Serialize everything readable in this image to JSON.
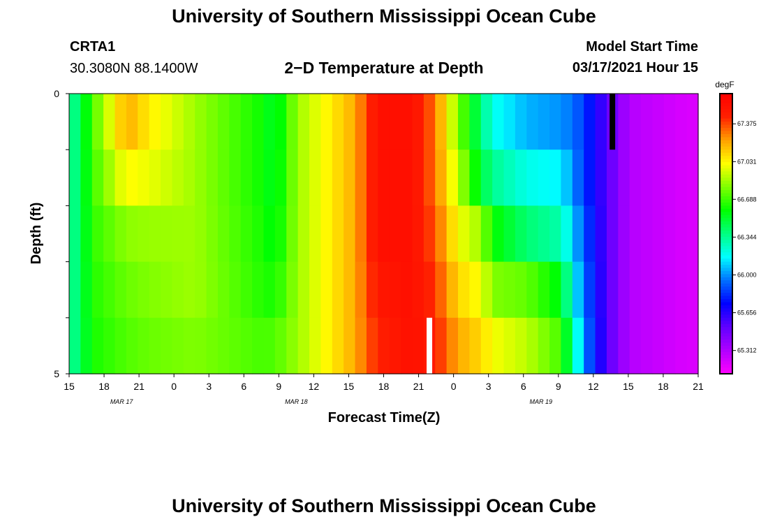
{
  "page": {
    "title": "University of Southern Mississippi Ocean Cube",
    "footer_title": "University of Southern Mississippi Ocean Cube",
    "station": "CRTA1",
    "coords": "30.3080N 88.1400W",
    "model_start_label": "Model Start Time",
    "model_start_value": "03/17/2021 Hour 15"
  },
  "chart_data": {
    "type": "heatmap",
    "title": "2−D Temperature at Depth",
    "xlabel": "Forecast Time(Z)",
    "ylabel": "Depth (ft)",
    "colorbar_unit": "degF",
    "y_ticks": [
      "0",
      "5"
    ],
    "y_range": [
      0,
      5
    ],
    "x_tick_labels": [
      "15",
      "18",
      "21",
      "0",
      "3",
      "6",
      "9",
      "12",
      "15",
      "18",
      "21",
      "0",
      "3",
      "6",
      "9",
      "12",
      "15",
      "18",
      "21"
    ],
    "date_labels": [
      {
        "text": "MAR 17",
        "tick_index": 2
      },
      {
        "text": "MAR 18",
        "tick_index": 7
      },
      {
        "text": "MAR 19",
        "tick_index": 14
      }
    ],
    "colorbar_labels": [
      "67.375",
      "67.031",
      "66.688",
      "66.344",
      "66.000",
      "65.656",
      "65.312"
    ],
    "value_range": [
      65.1,
      67.65
    ],
    "hours": 55,
    "depth_layers": 5,
    "palette": [
      "#ff00ff",
      "#b000ff",
      "#6000ff",
      "#0000ff",
      "#0070ff",
      "#00ffff",
      "#00ff80",
      "#00ff00",
      "#80ff00",
      "#ffff00",
      "#ffa000",
      "#ff2000",
      "#ff0000"
    ],
    "keyframes": [
      [
        0,
        [
          66.3,
          66.3,
          66.3,
          66.3,
          66.3
        ]
      ],
      [
        1,
        [
          66.45,
          66.45,
          66.45,
          66.45,
          66.45
        ]
      ],
      [
        2,
        [
          66.7,
          66.68,
          66.66,
          66.64,
          66.62
        ]
      ],
      [
        5,
        [
          67.2,
          67.02,
          66.82,
          66.76,
          66.72
        ]
      ],
      [
        7,
        [
          67.05,
          66.98,
          66.84,
          66.8,
          66.76
        ]
      ],
      [
        11,
        [
          66.85,
          66.85,
          66.85,
          66.85,
          66.8
        ]
      ],
      [
        17,
        [
          66.6,
          66.6,
          66.62,
          66.64,
          66.7
        ]
      ],
      [
        18,
        [
          66.5,
          66.52,
          66.55,
          66.62,
          66.72
        ]
      ],
      [
        20,
        [
          66.85,
          66.85,
          66.85,
          66.85,
          66.85
        ]
      ],
      [
        25,
        [
          67.2,
          67.2,
          67.2,
          67.2,
          67.2
        ]
      ],
      [
        27,
        [
          67.55,
          67.55,
          67.55,
          67.5,
          67.45
        ]
      ],
      [
        30,
        [
          67.55,
          67.55,
          67.55,
          67.55,
          67.55
        ]
      ],
      [
        32,
        [
          67.3,
          67.3,
          67.35,
          67.4,
          67.45
        ]
      ],
      [
        34,
        [
          66.8,
          66.9,
          67.0,
          67.1,
          67.2
        ]
      ],
      [
        36,
        [
          66.4,
          66.5,
          66.85,
          67.0,
          67.1
        ]
      ],
      [
        37,
        [
          66.2,
          66.35,
          66.6,
          66.8,
          67.0
        ]
      ],
      [
        40,
        [
          66.05,
          66.2,
          66.4,
          66.75,
          66.9
        ]
      ],
      [
        43,
        [
          66.0,
          66.15,
          66.3,
          66.55,
          66.7
        ]
      ],
      [
        44,
        [
          65.95,
          66.0,
          66.1,
          66.2,
          66.35
        ]
      ],
      [
        45,
        [
          65.85,
          65.85,
          65.9,
          65.95,
          66.0
        ]
      ],
      [
        47,
        [
          65.55,
          65.55,
          65.55,
          65.55,
          65.55
        ]
      ],
      [
        49,
        [
          65.3,
          65.3,
          65.3,
          65.3,
          65.3
        ]
      ],
      [
        54,
        [
          65.2,
          65.2,
          65.2,
          65.2,
          65.2
        ]
      ]
    ],
    "markers": [
      {
        "name": "model-start-marker",
        "hour": 47,
        "layer": 0,
        "color": "#000000"
      },
      {
        "name": "white-marker",
        "hour": 31,
        "layer": 4,
        "color": "#ffffff"
      }
    ]
  }
}
